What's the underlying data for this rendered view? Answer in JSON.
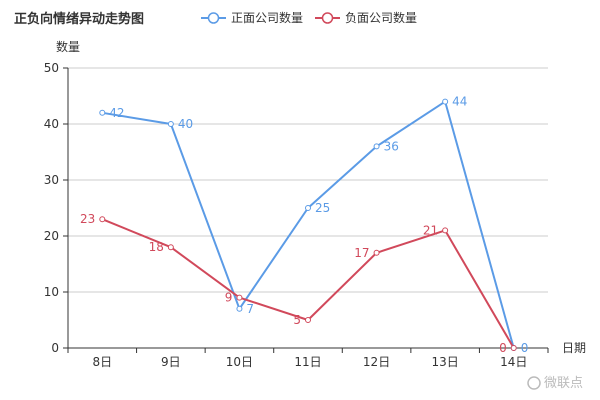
{
  "title": "正负向情绪异动走势图",
  "watermark": "微联点",
  "chart_data": {
    "type": "line",
    "title": "正负向情绪异动走势图",
    "xlabel": "日期",
    "ylabel": "数量",
    "categories": [
      "8日",
      "9日",
      "10日",
      "11日",
      "12日",
      "13日",
      "14日"
    ],
    "ylim": [
      0,
      50
    ],
    "yticks": [
      0,
      10,
      20,
      30,
      40,
      50
    ],
    "grid": true,
    "legend_position": "top",
    "series": [
      {
        "name": "正面公司数量",
        "color": "#5b9be6",
        "values": [
          42,
          40,
          7,
          25,
          36,
          44,
          0
        ],
        "label_side": "right"
      },
      {
        "name": "负面公司数量",
        "color": "#d1495b",
        "values": [
          23,
          18,
          9,
          5,
          17,
          21,
          0
        ],
        "label_side": "left"
      }
    ]
  }
}
